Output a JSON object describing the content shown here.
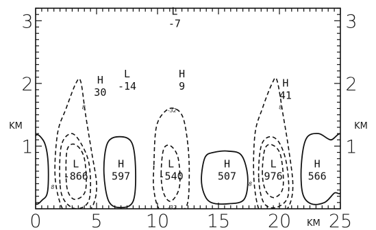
{
  "chart_data": {
    "type": "contour",
    "title": "",
    "xlabel": "KM",
    "ylabel": "KM",
    "xlim": [
      0,
      25
    ],
    "ylim": [
      0,
      3.2
    ],
    "x_ticks": [
      {
        "v": 0,
        "label": "0"
      },
      {
        "v": 5,
        "label": "5"
      },
      {
        "v": 10,
        "label": "10"
      },
      {
        "v": 15,
        "label": "15"
      },
      {
        "v": 20,
        "label": "20"
      },
      {
        "v": 25,
        "label": "25"
      }
    ],
    "y_ticks": [
      {
        "v": 1,
        "label": "1"
      },
      {
        "v": 2,
        "label": "2"
      },
      {
        "v": 3,
        "label": "3"
      }
    ],
    "x_unit": "KM",
    "y_unit": "KM",
    "annotations": [
      {
        "x": 3.3,
        "y": 0.56,
        "letter": "L",
        "value": "-866"
      },
      {
        "x": 7.0,
        "y": 0.56,
        "letter": "H",
        "value": "597"
      },
      {
        "x": 11.1,
        "y": 0.56,
        "letter": "L",
        "value": "-540"
      },
      {
        "x": 15.7,
        "y": 0.56,
        "letter": "H",
        "value": "507"
      },
      {
        "x": 19.5,
        "y": 0.56,
        "letter": "L",
        "value": "976"
      },
      {
        "x": 23.1,
        "y": 0.56,
        "letter": "H",
        "value": "566"
      },
      {
        "x": 5.3,
        "y": 1.9,
        "letter": "H",
        "value": "30"
      },
      {
        "x": 7.5,
        "y": 2.0,
        "letter": "L",
        "value": "-14"
      },
      {
        "x": 12.0,
        "y": 2.0,
        "letter": "H",
        "value": "9"
      },
      {
        "x": 11.4,
        "y": 3.0,
        "letter": "L",
        "value": "-7"
      },
      {
        "x": 20.5,
        "y": 1.85,
        "letter": "H",
        "value": "41"
      }
    ],
    "contour_labels": [
      {
        "x": 3.95,
        "y": 1.62,
        "text": "8"
      },
      {
        "x": 20.1,
        "y": 1.62,
        "text": "8"
      },
      {
        "x": 11.2,
        "y": 1.57,
        "text": "-32"
      },
      {
        "x": 1.4,
        "y": 0.35,
        "text": "8"
      },
      {
        "x": 17.6,
        "y": 0.4,
        "text": "8"
      },
      {
        "x": 11.2,
        "y": 0.02,
        "text": "-32"
      }
    ],
    "contours": [
      {
        "style": "solid",
        "points": [
          [
            -0.1,
            1.1
          ],
          [
            0.6,
            1.1
          ],
          [
            1.0,
            0.8
          ],
          [
            1.0,
            0.3
          ],
          [
            0.6,
            0.15
          ],
          [
            -0.1,
            0.15
          ]
        ]
      },
      {
        "style": "dash",
        "points": [
          [
            2.2,
            0.0
          ],
          [
            1.6,
            0.5
          ],
          [
            1.8,
            1.2
          ],
          [
            2.5,
            1.6
          ],
          [
            3.3,
            2.0
          ],
          [
            3.7,
            2.03
          ],
          [
            4.1,
            1.5
          ],
          [
            4.6,
            0.9
          ],
          [
            5.0,
            0.4
          ],
          [
            4.8,
            0.1
          ],
          [
            4.2,
            -0.05
          ],
          [
            3.0,
            -0.05
          ]
        ]
      },
      {
        "style": "dash",
        "points": [
          [
            2.0,
            0.4
          ],
          [
            2.1,
            1.0
          ],
          [
            2.9,
            1.2
          ],
          [
            3.7,
            1.05
          ],
          [
            4.4,
            0.7
          ],
          [
            4.4,
            0.15
          ],
          [
            3.4,
            0.0
          ],
          [
            2.4,
            0.12
          ]
        ]
      },
      {
        "style": "dash",
        "points": [
          [
            2.5,
            0.5
          ],
          [
            2.6,
            0.95
          ],
          [
            3.3,
            1.02
          ],
          [
            4.0,
            0.8
          ],
          [
            4.1,
            0.3
          ],
          [
            3.3,
            0.15
          ],
          [
            2.7,
            0.25
          ]
        ]
      },
      {
        "style": "solid",
        "points": [
          [
            5.6,
            0.6
          ],
          [
            5.9,
            1.05
          ],
          [
            6.9,
            1.15
          ],
          [
            7.9,
            1.05
          ],
          [
            8.2,
            0.6
          ],
          [
            8.0,
            0.12
          ],
          [
            7.0,
            0.02
          ],
          [
            6.0,
            0.12
          ]
        ]
      },
      {
        "style": "dash",
        "points": [
          [
            9.7,
            0.7
          ],
          [
            9.9,
            1.3
          ],
          [
            10.6,
            1.55
          ],
          [
            11.4,
            1.6
          ],
          [
            12.1,
            1.45
          ],
          [
            12.5,
            1.0
          ],
          [
            12.6,
            0.5
          ],
          [
            12.4,
            0.05
          ],
          [
            11.4,
            -0.05
          ],
          [
            10.2,
            -0.02
          ],
          [
            9.7,
            0.3
          ]
        ]
      },
      {
        "style": "dash",
        "points": [
          [
            10.3,
            0.55
          ],
          [
            10.5,
            0.95
          ],
          [
            11.1,
            1.0
          ],
          [
            11.7,
            0.8
          ],
          [
            11.8,
            0.35
          ],
          [
            11.1,
            0.12
          ],
          [
            10.5,
            0.25
          ]
        ]
      },
      {
        "style": "solid",
        "points": [
          [
            13.6,
            0.5
          ],
          [
            13.9,
            0.82
          ],
          [
            14.6,
            0.9
          ],
          [
            15.8,
            0.92
          ],
          [
            16.9,
            0.85
          ],
          [
            17.4,
            0.5
          ],
          [
            17.1,
            0.15
          ],
          [
            15.8,
            0.08
          ],
          [
            14.4,
            0.1
          ],
          [
            13.8,
            0.25
          ]
        ]
      },
      {
        "style": "dash",
        "points": [
          [
            18.3,
            0.0
          ],
          [
            17.9,
            0.5
          ],
          [
            18.0,
            1.2
          ],
          [
            18.6,
            1.6
          ],
          [
            19.4,
            2.0
          ],
          [
            19.8,
            2.05
          ],
          [
            20.3,
            1.5
          ],
          [
            20.8,
            0.9
          ],
          [
            21.1,
            0.4
          ],
          [
            20.9,
            0.1
          ],
          [
            20.3,
            -0.05
          ],
          [
            19.0,
            -0.05
          ]
        ]
      },
      {
        "style": "dash",
        "points": [
          [
            18.3,
            0.5
          ],
          [
            18.5,
            1.0
          ],
          [
            19.2,
            1.15
          ],
          [
            20.0,
            1.05
          ],
          [
            20.6,
            0.7
          ],
          [
            20.7,
            0.2
          ],
          [
            19.7,
            0.02
          ],
          [
            18.7,
            0.1
          ]
        ]
      },
      {
        "style": "dash",
        "points": [
          [
            18.6,
            0.55
          ],
          [
            18.8,
            0.95
          ],
          [
            19.4,
            1.02
          ],
          [
            20.1,
            0.85
          ],
          [
            20.3,
            0.35
          ],
          [
            19.6,
            0.18
          ],
          [
            18.9,
            0.28
          ]
        ]
      },
      {
        "style": "solid",
        "points": [
          [
            25.1,
            1.15
          ],
          [
            24.2,
            1.1
          ],
          [
            23.2,
            1.2
          ],
          [
            22.2,
            1.12
          ],
          [
            21.8,
            0.7
          ],
          [
            21.9,
            0.25
          ],
          [
            22.6,
            0.08
          ],
          [
            23.7,
            0.1
          ],
          [
            24.5,
            0.25
          ],
          [
            25.1,
            0.32
          ]
        ]
      }
    ]
  }
}
